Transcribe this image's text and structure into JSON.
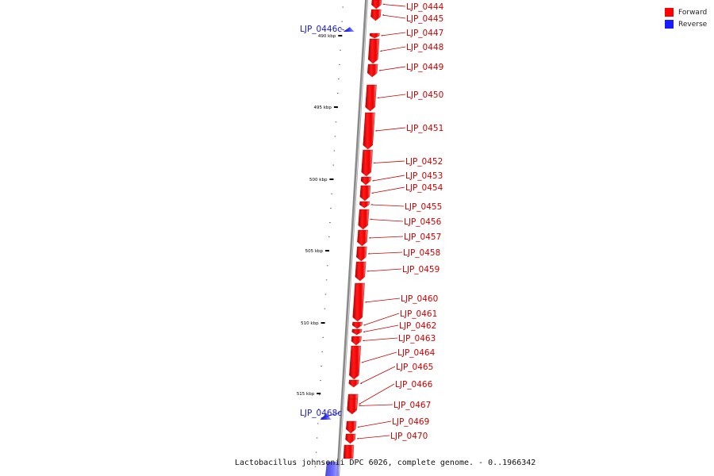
{
  "legend": {
    "forward_label": "Forward",
    "forward_color": "#ff0000",
    "reverse_label": "Reverse",
    "reverse_color": "#1a1aff"
  },
  "caption": "Lactobacillus johnsonii DPC 6026, complete genome. - 0..1966342",
  "colors": {
    "forward_label": "#cc0000",
    "reverse_label": "#1a1acc",
    "backbone": "#8a8a8a"
  },
  "ticks": [
    {
      "label": "490 kbp"
    },
    {
      "label": "495 kbp"
    },
    {
      "label": "500 kbp"
    },
    {
      "label": "505 kbp"
    },
    {
      "label": "510 kbp"
    },
    {
      "label": "515 kbp"
    }
  ],
  "genes": [
    {
      "name": "LJP_0444",
      "strand": "forward"
    },
    {
      "name": "LJP_0445",
      "strand": "forward"
    },
    {
      "name": "LJP_0446c",
      "strand": "reverse"
    },
    {
      "name": "LJP_0447",
      "strand": "forward"
    },
    {
      "name": "LJP_0448",
      "strand": "forward"
    },
    {
      "name": "LJP_0449",
      "strand": "forward"
    },
    {
      "name": "LJP_0450",
      "strand": "forward"
    },
    {
      "name": "LJP_0451",
      "strand": "forward"
    },
    {
      "name": "LJP_0452",
      "strand": "forward"
    },
    {
      "name": "LJP_0453",
      "strand": "forward"
    },
    {
      "name": "LJP_0454",
      "strand": "forward"
    },
    {
      "name": "LJP_0455",
      "strand": "forward"
    },
    {
      "name": "LJP_0456",
      "strand": "forward"
    },
    {
      "name": "LJP_0457",
      "strand": "forward"
    },
    {
      "name": "LJP_0458",
      "strand": "forward"
    },
    {
      "name": "LJP_0459",
      "strand": "forward"
    },
    {
      "name": "LJP_0460",
      "strand": "forward"
    },
    {
      "name": "LJP_0461",
      "strand": "forward"
    },
    {
      "name": "LJP_0462",
      "strand": "forward"
    },
    {
      "name": "LJP_0463",
      "strand": "forward"
    },
    {
      "name": "LJP_0464",
      "strand": "forward"
    },
    {
      "name": "LJP_0465",
      "strand": "forward"
    },
    {
      "name": "LJP_0466",
      "strand": "forward"
    },
    {
      "name": "LJP_0467",
      "strand": "forward"
    },
    {
      "name": "LJP_0468c",
      "strand": "reverse"
    },
    {
      "name": "LJP_0469",
      "strand": "forward"
    },
    {
      "name": "LJP_0470",
      "strand": "forward"
    }
  ]
}
